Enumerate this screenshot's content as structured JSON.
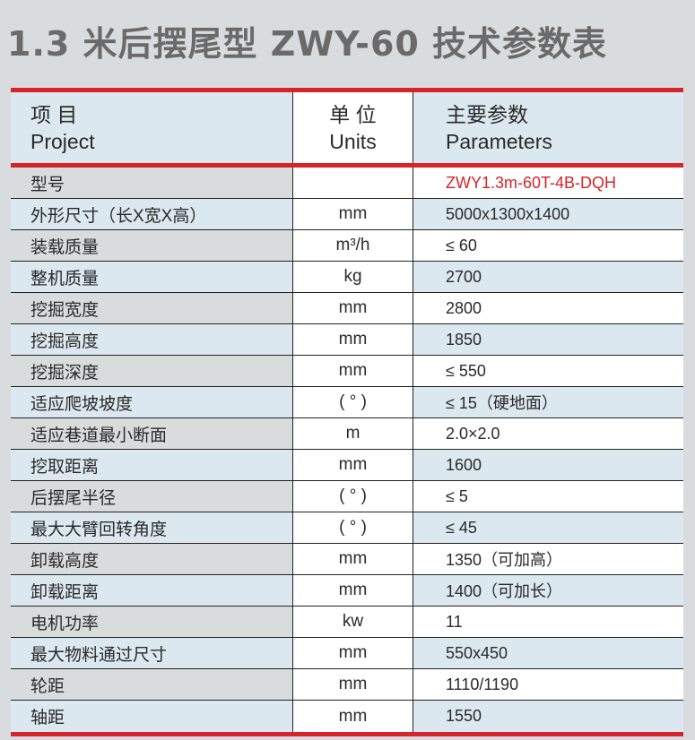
{
  "title": "1.3 米后摆尾型 ZWY-60 技术参数表",
  "header": {
    "project_cn": "项 目",
    "project_en": "Project",
    "units_cn": "单 位",
    "units_en": "Units",
    "params_cn": "主要参数",
    "params_en": "Parameters"
  },
  "accent_color": "#d8232a",
  "rows": [
    {
      "item": "型号",
      "unit": "",
      "value": "ZWY1.3m-60T-4B-DQH"
    },
    {
      "item": "外形尺寸（长X宽X高）",
      "unit": "mm",
      "value": "5000x1300x1400"
    },
    {
      "item": "装载质量",
      "unit": "m³/h",
      "value": "≤ 60"
    },
    {
      "item": "整机质量",
      "unit": "kg",
      "value": "2700"
    },
    {
      "item": "挖掘宽度",
      "unit": "mm",
      "value": "2800"
    },
    {
      "item": "挖掘高度",
      "unit": "mm",
      "value": "1850"
    },
    {
      "item": "挖掘深度",
      "unit": "mm",
      "value": "≤ 550"
    },
    {
      "item": "适应爬坡坡度",
      "unit": "( ° )",
      "value": "≤ 15（硬地面）"
    },
    {
      "item": "适应巷道最小断面",
      "unit": "m",
      "value": "2.0×2.0"
    },
    {
      "item": "挖取距离",
      "unit": "mm",
      "value": "1600"
    },
    {
      "item": "后摆尾半径",
      "unit": "( ° )",
      "value": "≤ 5"
    },
    {
      "item": "最大大臂回转角度",
      "unit": "( ° )",
      "value": "≤ 45"
    },
    {
      "item": "卸载高度",
      "unit": "mm",
      "value": "1350（可加高）"
    },
    {
      "item": "卸载距离",
      "unit": "mm",
      "value": "1400（可加长）"
    },
    {
      "item": "电机功率",
      "unit": "kw",
      "value": "11"
    },
    {
      "item": "最大物料通过尺寸",
      "unit": "mm",
      "value": "550x450"
    },
    {
      "item": "轮距",
      "unit": "mm",
      "value": "1110/1190"
    },
    {
      "item": "轴距",
      "unit": "mm",
      "value": "1550"
    }
  ]
}
